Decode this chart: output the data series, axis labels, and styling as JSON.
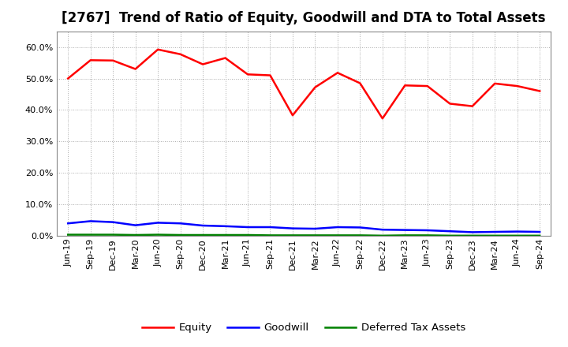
{
  "title": "[2767]  Trend of Ratio of Equity, Goodwill and DTA to Total Assets",
  "xlabel": "",
  "ylabel": "",
  "x_labels": [
    "Jun-19",
    "Sep-19",
    "Dec-19",
    "Mar-20",
    "Jun-20",
    "Sep-20",
    "Dec-20",
    "Mar-21",
    "Jun-21",
    "Sep-21",
    "Dec-21",
    "Mar-22",
    "Jun-22",
    "Sep-22",
    "Dec-22",
    "Mar-23",
    "Jun-23",
    "Sep-23",
    "Dec-23",
    "Mar-24",
    "Jun-24",
    "Sep-24"
  ],
  "equity": [
    0.5,
    0.558,
    0.557,
    0.53,
    0.592,
    0.577,
    0.545,
    0.565,
    0.513,
    0.51,
    0.383,
    0.472,
    0.518,
    0.485,
    0.373,
    0.478,
    0.476,
    0.42,
    0.412,
    0.484,
    0.476,
    0.46
  ],
  "goodwill": [
    0.04,
    0.047,
    0.044,
    0.034,
    0.042,
    0.04,
    0.033,
    0.031,
    0.028,
    0.028,
    0.024,
    0.023,
    0.028,
    0.027,
    0.02,
    0.019,
    0.018,
    0.015,
    0.012,
    0.013,
    0.014,
    0.013
  ],
  "dta": [
    0.004,
    0.004,
    0.004,
    0.003,
    0.004,
    0.003,
    0.003,
    0.003,
    0.003,
    0.002,
    0.002,
    0.002,
    0.002,
    0.002,
    0.001,
    0.002,
    0.002,
    0.001,
    0.001,
    0.001,
    0.001,
    0.001
  ],
  "equity_color": "#ff0000",
  "goodwill_color": "#0000ff",
  "dta_color": "#008000",
  "ylim": [
    0.0,
    0.65
  ],
  "yticks": [
    0.0,
    0.1,
    0.2,
    0.3,
    0.4,
    0.5,
    0.6
  ],
  "legend_labels": [
    "Equity",
    "Goodwill",
    "Deferred Tax Assets"
  ],
  "bg_color": "#ffffff",
  "plot_bg_color": "#ffffff",
  "grid_color": "#aaaaaa",
  "title_fontsize": 12,
  "tick_fontsize": 8,
  "legend_fontsize": 9.5
}
